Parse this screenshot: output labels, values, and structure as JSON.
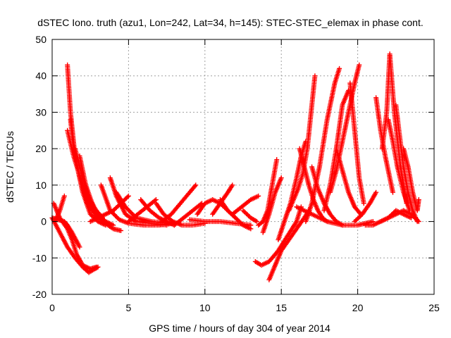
{
  "chart_data": {
    "type": "scatter",
    "title": "dSTEC Iono. truth (azu1, Lon=242, Lat=34, h=145): STEC-STEC_elemax in phase cont.",
    "xlabel": "GPS time / hours of day 304 of year 2014",
    "ylabel": "dSTEC  / TECUs",
    "xlim": [
      0,
      25
    ],
    "ylim": [
      -20,
      50
    ],
    "xticks": [
      0,
      5,
      10,
      15,
      20,
      25
    ],
    "yticks": [
      -20,
      -10,
      0,
      10,
      20,
      30,
      40,
      50
    ],
    "grid": true,
    "marker": "plus",
    "color": "#ff0000",
    "series": [
      {
        "x": [
          0.0,
          0.5,
          1.0,
          1.5,
          2.0,
          2.4,
          2.8,
          3.0
        ],
        "values": [
          1,
          -3,
          -7,
          -10,
          -12.5,
          -14,
          -13,
          -12.5
        ]
      },
      {
        "x": [
          0.1,
          0.5,
          1.0,
          1.3,
          1.6,
          2.0,
          2.5,
          2.9
        ],
        "values": [
          5,
          1,
          -2,
          -5,
          -9,
          -12,
          -13,
          -12.5
        ]
      },
      {
        "x": [
          0.0,
          0.4,
          0.8,
          1.0,
          1.3,
          1.8
        ],
        "values": [
          1,
          0.5,
          0,
          -1,
          -3,
          -7
        ]
      },
      {
        "x": [
          0.2,
          0.5,
          0.8
        ],
        "values": [
          0,
          3,
          7
        ]
      },
      {
        "x": [
          1.0,
          1.2,
          1.5,
          2.0,
          2.5,
          3.0,
          3.5
        ],
        "values": [
          43,
          30,
          18,
          8,
          2,
          0,
          -1
        ]
      },
      {
        "x": [
          1.2,
          1.4,
          1.8,
          2.3,
          3.0,
          3.8
        ],
        "values": [
          28,
          20,
          12,
          5,
          1,
          -1
        ]
      },
      {
        "x": [
          1.0,
          1.4,
          2.0,
          2.6,
          3.3,
          4.0,
          4.5
        ],
        "values": [
          25,
          18,
          10,
          4,
          0,
          -2,
          -2.5
        ]
      },
      {
        "x": [
          1.5,
          2.0,
          2.5,
          3.0,
          3.5,
          4.0
        ],
        "values": [
          20,
          12,
          6,
          2,
          0,
          -1
        ]
      },
      {
        "x": [
          1.8,
          2.2,
          2.7,
          3.3
        ],
        "values": [
          18,
          10,
          4,
          1
        ]
      },
      {
        "x": [
          3.2,
          3.8,
          4.4,
          5.0,
          6.0,
          7.0,
          8.0
        ],
        "values": [
          10,
          3,
          0.5,
          -0.5,
          -1,
          -1,
          -0.5
        ]
      },
      {
        "x": [
          3.8,
          4.2,
          4.8,
          5.5,
          6.5,
          7.5
        ],
        "values": [
          12,
          7,
          2,
          0,
          -0.5,
          -1
        ]
      },
      {
        "x": [
          4.2,
          4.8,
          5.5,
          6.5,
          7.5
        ],
        "values": [
          8,
          4,
          1,
          0,
          -0.5
        ]
      },
      {
        "x": [
          2.5,
          3.0,
          3.5,
          4.0,
          4.5,
          5.0
        ],
        "values": [
          0,
          1,
          2,
          3,
          5,
          7
        ]
      },
      {
        "x": [
          5.0,
          5.6,
          6.2,
          6.8
        ],
        "values": [
          0,
          2,
          4,
          6
        ]
      },
      {
        "x": [
          5.8,
          6.4,
          7.0,
          7.5,
          8.0
        ],
        "values": [
          6,
          3,
          1,
          0,
          -1
        ]
      },
      {
        "x": [
          7.2,
          7.8,
          8.4,
          9.0,
          9.4
        ],
        "values": [
          0,
          2,
          5,
          8,
          10
        ]
      },
      {
        "x": [
          6.8,
          7.3,
          7.9,
          8.5,
          9.2,
          10.0
        ],
        "values": [
          5,
          2,
          0,
          -1,
          -1,
          -0.5
        ]
      },
      {
        "x": [
          8.0,
          8.6,
          9.2,
          9.8
        ],
        "values": [
          -1,
          1,
          3,
          5
        ]
      },
      {
        "x": [
          9.5,
          10.0,
          10.5,
          11.0,
          11.5,
          12.0
        ],
        "values": [
          2,
          5,
          6,
          5,
          3,
          1
        ]
      },
      {
        "x": [
          10.5,
          11.0,
          11.5,
          11.8
        ],
        "values": [
          2,
          5,
          8,
          10
        ]
      },
      {
        "x": [
          11.0,
          11.5,
          12.0,
          12.5,
          13.0
        ],
        "values": [
          6,
          3,
          1,
          -1,
          -2
        ]
      },
      {
        "x": [
          11.8,
          12.4,
          13.0,
          13.5
        ],
        "values": [
          2,
          4,
          6,
          7
        ]
      },
      {
        "x": [
          9.0,
          10.0,
          11.0,
          12.0,
          13.0
        ],
        "values": [
          0.5,
          0,
          0,
          -0.5,
          -1
        ]
      },
      {
        "x": [
          12.5,
          13.0,
          13.4
        ],
        "values": [
          3,
          1,
          0
        ]
      },
      {
        "x": [
          13.5,
          13.8,
          14.1,
          14.4,
          14.7
        ],
        "values": [
          -1,
          0,
          3,
          10,
          17
        ]
      },
      {
        "x": [
          13.8,
          14.2,
          14.6,
          15.0
        ],
        "values": [
          -3,
          2,
          8,
          12
        ]
      },
      {
        "x": [
          13.3,
          13.7,
          14.2,
          14.8,
          15.4,
          16.0,
          16.3
        ],
        "values": [
          -11,
          -12,
          -11,
          -8,
          -4,
          0,
          4
        ]
      },
      {
        "x": [
          14.2,
          14.6,
          15.0,
          15.5,
          16.0,
          16.5,
          16.8
        ],
        "values": [
          -16,
          -12,
          -8,
          -5,
          -2,
          1,
          3
        ]
      },
      {
        "x": [
          14.8,
          15.2,
          15.6,
          16.0,
          16.3,
          16.6
        ],
        "values": [
          -5,
          0,
          5,
          12,
          18,
          22
        ]
      },
      {
        "x": [
          15.5,
          15.8,
          16.1,
          16.4,
          16.7,
          17.0,
          17.2
        ],
        "values": [
          3,
          6,
          9,
          13,
          20,
          32,
          40
        ]
      },
      {
        "x": [
          16.2,
          16.5,
          16.8,
          17.1,
          17.4,
          17.7,
          18.0
        ],
        "values": [
          20,
          15,
          10,
          6,
          3,
          1,
          0
        ]
      },
      {
        "x": [
          16.6,
          17.0,
          17.5,
          18.0,
          18.5,
          18.8
        ],
        "values": [
          0,
          5,
          15,
          28,
          38,
          42
        ]
      },
      {
        "x": [
          17.0,
          17.4,
          17.8,
          18.2,
          18.6,
          19.0
        ],
        "values": [
          15,
          9,
          5,
          2,
          0,
          -1
        ]
      },
      {
        "x": [
          17.8,
          18.2,
          18.6,
          19.0,
          19.4
        ],
        "values": [
          3,
          10,
          20,
          32,
          36
        ]
      },
      {
        "x": [
          18.2,
          18.6,
          19.0,
          19.4,
          19.8,
          20.1
        ],
        "values": [
          8,
          14,
          22,
          30,
          38,
          43
        ]
      },
      {
        "x": [
          18.6,
          19.0,
          19.4,
          19.8,
          20.2
        ],
        "values": [
          20,
          14,
          8,
          4,
          2
        ]
      },
      {
        "x": [
          19.5,
          19.8,
          20.1,
          20.4
        ],
        "values": [
          38,
          25,
          12,
          5
        ]
      },
      {
        "x": [
          19.8,
          20.3,
          20.8,
          21.2
        ],
        "values": [
          0,
          2,
          5,
          8
        ]
      },
      {
        "x": [
          20.5,
          21.0,
          21.5,
          22.0,
          22.5,
          23.0,
          23.5
        ],
        "values": [
          -1,
          -1,
          0,
          1,
          3,
          2,
          1
        ]
      },
      {
        "x": [
          21.2,
          21.5,
          21.8,
          22.1,
          22.3
        ],
        "values": [
          34,
          25,
          18,
          12,
          8
        ]
      },
      {
        "x": [
          21.6,
          21.9,
          22.1,
          22.4,
          22.8,
          23.2
        ],
        "values": [
          20,
          30,
          46,
          30,
          15,
          5
        ]
      },
      {
        "x": [
          22.0,
          22.3,
          22.6,
          23.0,
          23.4
        ],
        "values": [
          28,
          22,
          15,
          8,
          3
        ]
      },
      {
        "x": [
          22.5,
          22.7,
          23.0,
          23.3,
          23.6,
          23.9
        ],
        "values": [
          32,
          25,
          15,
          8,
          3,
          0
        ]
      },
      {
        "x": [
          23.0,
          23.3,
          23.6,
          23.9,
          24.0
        ],
        "values": [
          20,
          15,
          8,
          3,
          6
        ]
      },
      {
        "x": [
          21.5,
          22.0,
          22.5,
          23.0,
          23.5,
          24.0
        ],
        "values": [
          0,
          1,
          2,
          3,
          2,
          0
        ]
      },
      {
        "x": [
          16.0,
          17.0,
          18.0,
          19.0,
          20.0,
          21.0
        ],
        "values": [
          4,
          2,
          0,
          -1,
          -1,
          0
        ]
      }
    ]
  }
}
